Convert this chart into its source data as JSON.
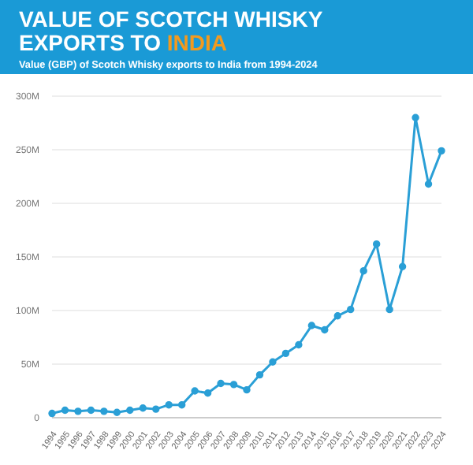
{
  "chart_data": {
    "type": "line",
    "title": "VALUE OF SCOTCH WHISKY EXPORTS TO INDIA",
    "subtitle": "Value (GBP) of Scotch Whisky exports to India from 1994-2024",
    "categories": [
      "1994",
      "1995",
      "1996",
      "1997",
      "1998",
      "1999",
      "2000",
      "2001",
      "2002",
      "2003",
      "2004",
      "2005",
      "2006",
      "2007",
      "2008",
      "2009",
      "2010",
      "2011",
      "2012",
      "2013",
      "2014",
      "2015",
      "2016",
      "2017",
      "2018",
      "2019",
      "2020",
      "2021",
      "2022",
      "2023",
      "2024"
    ],
    "series": [
      {
        "color": "#2a9fd6",
        "values": [
          4,
          7,
          6,
          7,
          6,
          5,
          7,
          9,
          8,
          12,
          12,
          25,
          23,
          32,
          31,
          26,
          40,
          52,
          60,
          68,
          86,
          82,
          95,
          101,
          137,
          162,
          101,
          141,
          280,
          218,
          249
        ]
      }
    ],
    "ylim": [
      0,
      300
    ],
    "yticks": [
      0,
      {
        "value": 50,
        "label": "50M"
      },
      {
        "value": 100,
        "label": "100M"
      },
      {
        "value": 150,
        "label": "150M"
      },
      {
        "value": 200,
        "label": "200M"
      },
      {
        "value": 250,
        "label": "250M"
      },
      {
        "value": 300,
        "label": "300M"
      }
    ],
    "grid": "y",
    "marker": "circle",
    "line_style": "solid"
  }
}
